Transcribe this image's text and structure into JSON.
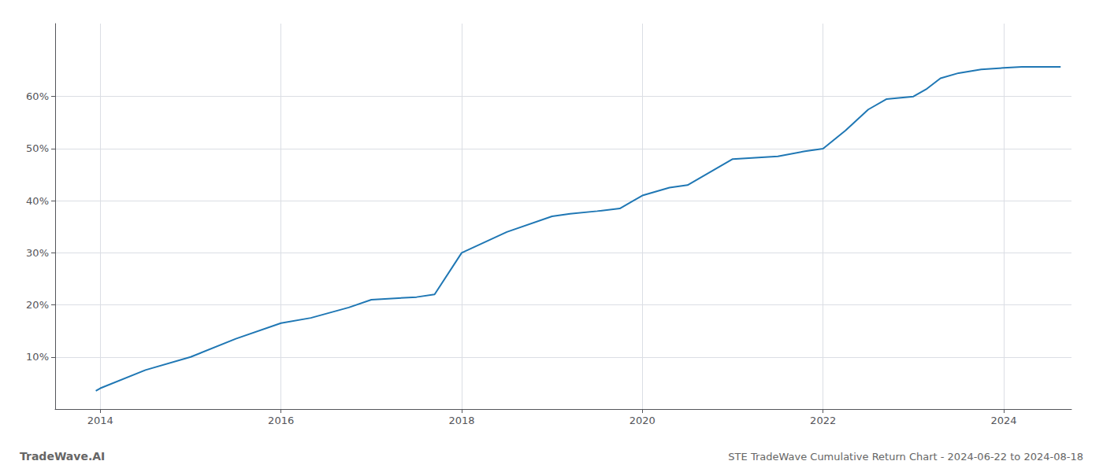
{
  "chart_data": {
    "type": "line",
    "title": "STE TradeWave Cumulative Return Chart - 2024-06-22 to 2024-08-18",
    "annotations": [
      "TradeWave.AI"
    ],
    "color": "#1f77b4",
    "x": [
      2013.95,
      2014.0,
      2014.5,
      2015.0,
      2015.5,
      2016.0,
      2016.33,
      2016.75,
      2017.0,
      2017.5,
      2017.7,
      2018.0,
      2018.5,
      2019.0,
      2019.2,
      2019.5,
      2019.75,
      2020.0,
      2020.3,
      2020.5,
      2021.0,
      2021.5,
      2021.8,
      2022.0,
      2022.25,
      2022.5,
      2022.7,
      2023.0,
      2023.15,
      2023.3,
      2023.5,
      2023.75,
      2024.0,
      2024.2,
      2024.63
    ],
    "values": [
      0.035,
      0.04,
      0.075,
      0.1,
      0.135,
      0.165,
      0.175,
      0.195,
      0.21,
      0.215,
      0.22,
      0.3,
      0.34,
      0.37,
      0.375,
      0.38,
      0.385,
      0.41,
      0.425,
      0.43,
      0.48,
      0.485,
      0.495,
      0.5,
      0.535,
      0.575,
      0.595,
      0.6,
      0.615,
      0.635,
      0.645,
      0.652,
      0.655,
      0.657,
      0.657
    ],
    "xlim": [
      2013.5,
      2024.75
    ],
    "ylim": [
      0.0,
      0.74
    ],
    "xticks": [
      2014,
      2016,
      2018,
      2020,
      2022,
      2024
    ],
    "yticks": [
      {
        "value": 0.1,
        "label": "10%"
      },
      {
        "value": 0.2,
        "label": "20%"
      },
      {
        "value": 0.3,
        "label": "30%"
      },
      {
        "value": 0.4,
        "label": "40%"
      },
      {
        "value": 0.5,
        "label": "50%"
      },
      {
        "value": 0.6,
        "label": "60%"
      }
    ],
    "grid": true
  }
}
